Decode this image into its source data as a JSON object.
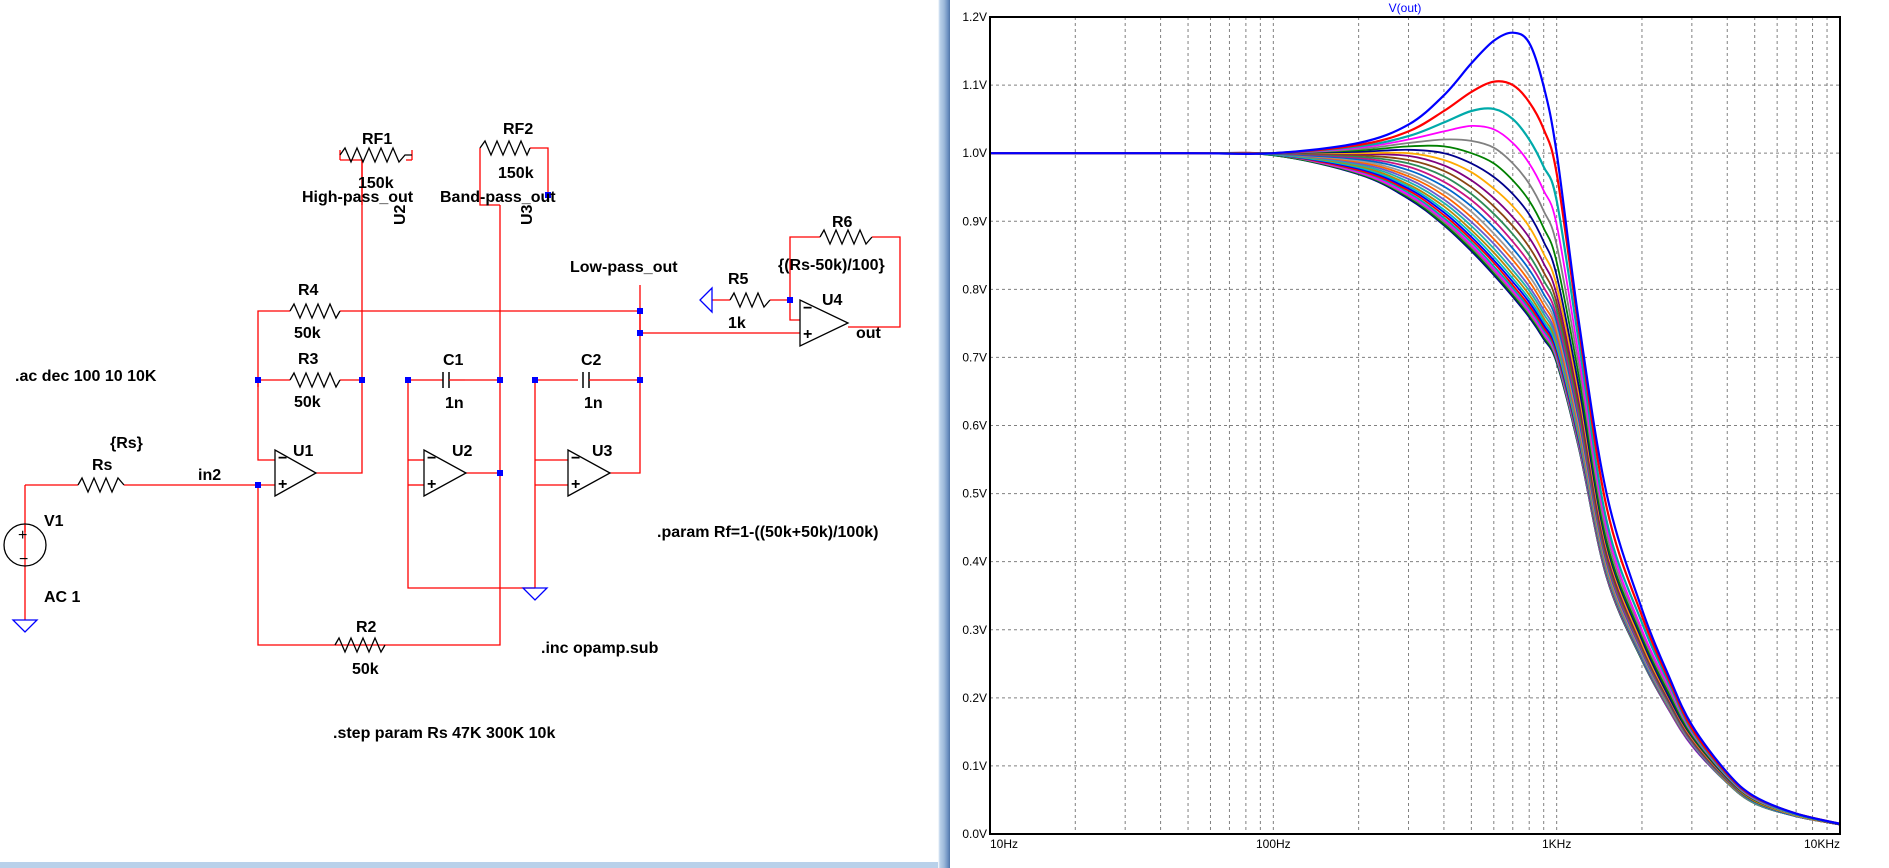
{
  "schematic": {
    "components": {
      "RF1": {
        "name": "RF1",
        "value": "150k"
      },
      "RF2": {
        "name": "RF2",
        "value": "150k"
      },
      "R4": {
        "name": "R4",
        "value": "50k"
      },
      "R3": {
        "name": "R3",
        "value": "50k"
      },
      "R2": {
        "name": "R2",
        "value": "50k"
      },
      "R5": {
        "name": "R5",
        "value": "1k"
      },
      "R6": {
        "name": "R6",
        "value": "{(Rs-50k)/100}"
      },
      "Rs": {
        "name": "Rs",
        "value": "{Rs}"
      },
      "C1": {
        "name": "C1",
        "value": "1n"
      },
      "C2": {
        "name": "C2",
        "value": "1n"
      },
      "V1": {
        "name": "V1",
        "value": "AC 1"
      },
      "U1": {
        "name": "U1"
      },
      "U2": {
        "name": "U2"
      },
      "U3": {
        "name": "U3"
      },
      "U4": {
        "name": "U4"
      },
      "U2_rot": {
        "name": "U2"
      },
      "U3_rot": {
        "name": "U3"
      }
    },
    "nets": {
      "high_pass": "High-pass_out",
      "band_pass": "Band-pass_out",
      "low_pass": "Low-pass_out",
      "in2": "in2",
      "out": "out"
    },
    "directives": {
      "ac": ".ac dec 100 10 10K",
      "param": ".param Rf=1-((50k+50k)/100k)",
      "inc": ".inc opamp.sub",
      "step": ".step param Rs 47K 300K 10k"
    },
    "colors": {
      "wire": "#ff0000",
      "component": "#000000",
      "ground": "#0000ff",
      "junction": "#0000ff"
    }
  },
  "plot": {
    "title": "V(out)",
    "colors": {
      "title": "#0000ff",
      "grid": "#808080",
      "frame": "#000000"
    },
    "series_palette": [
      "#0000ff",
      "#ff0000",
      "#00aaaa",
      "#ff00ff",
      "#808080",
      "#008000",
      "#00008b",
      "#ffaa00",
      "#800080",
      "#8b4513",
      "#2e8b57",
      "#c71585",
      "#0066cc",
      "#999999",
      "#ff6600",
      "#6a5acd",
      "#20b2aa",
      "#b8860b",
      "#00bfbf"
    ]
  },
  "chart_data": {
    "type": "line",
    "title": "V(out)",
    "xscale": "log",
    "xlim": [
      10,
      10000
    ],
    "ylim": [
      0,
      1.2
    ],
    "x_tick_labels": [
      "10Hz",
      "100Hz",
      "1KHz",
      "10KHz"
    ],
    "y_tick_labels": [
      "0.0V",
      "0.1V",
      "0.2V",
      "0.3V",
      "0.4V",
      "0.5V",
      "0.6V",
      "0.7V",
      "0.8V",
      "0.9V",
      "1.0V",
      "1.1V",
      "1.2V"
    ],
    "y_ticks": [
      0,
      0.1,
      0.2,
      0.3,
      0.4,
      0.5,
      0.6,
      0.7,
      0.8,
      0.9,
      1.0,
      1.1,
      1.2
    ],
    "x_ticks": [
      10,
      100,
      1000,
      10000
    ],
    "grid": true,
    "step_param": "Rs",
    "steps": [
      47000,
      57000,
      67000,
      77000,
      87000,
      97000,
      107000,
      117000,
      127000,
      137000,
      147000,
      157000,
      167000,
      177000,
      187000,
      197000,
      207000,
      217000,
      227000,
      237000,
      247000,
      257000,
      267000,
      277000,
      287000,
      297000
    ],
    "x": [
      10,
      50,
      100,
      200,
      300,
      400,
      500,
      600,
      700,
      800,
      900,
      1000,
      1200,
      1500,
      2000,
      2500,
      3000,
      4000,
      5000,
      7000,
      10000
    ],
    "series": [
      {
        "values": [
          1.0,
          1.0,
          1.0,
          1.015,
          1.042,
          1.085,
          1.132,
          1.165,
          1.177,
          1.162,
          1.098,
          1.0,
          0.75,
          0.5,
          0.33,
          0.23,
          0.16,
          0.09,
          0.055,
          0.03,
          0.015
        ]
      },
      {
        "values": [
          1.0,
          1.0,
          1.0,
          1.012,
          1.032,
          1.062,
          1.09,
          1.105,
          1.1,
          1.075,
          1.035,
          0.97,
          0.74,
          0.48,
          0.32,
          0.225,
          0.155,
          0.088,
          0.054,
          0.03,
          0.015
        ]
      },
      {
        "values": [
          1.0,
          1.0,
          1.0,
          1.01,
          1.025,
          1.045,
          1.062,
          1.065,
          1.05,
          1.02,
          0.98,
          0.93,
          0.72,
          0.46,
          0.31,
          0.22,
          0.152,
          0.086,
          0.053,
          0.029,
          0.015
        ]
      },
      {
        "values": [
          1.0,
          1.0,
          1.0,
          1.008,
          1.02,
          1.032,
          1.04,
          1.035,
          1.015,
          0.985,
          0.945,
          0.895,
          0.7,
          0.45,
          0.3,
          0.215,
          0.15,
          0.085,
          0.052,
          0.029,
          0.015
        ]
      },
      {
        "values": [
          1.0,
          1.0,
          1.0,
          1.006,
          1.015,
          1.02,
          1.018,
          1.008,
          0.985,
          0.955,
          0.915,
          0.865,
          0.685,
          0.44,
          0.295,
          0.21,
          0.148,
          0.084,
          0.051,
          0.028,
          0.015
        ]
      },
      {
        "values": [
          1.0,
          1.0,
          1.0,
          1.004,
          1.01,
          1.01,
          1.0,
          0.985,
          0.96,
          0.93,
          0.89,
          0.84,
          0.67,
          0.43,
          0.29,
          0.205,
          0.145,
          0.083,
          0.05,
          0.028,
          0.015
        ]
      },
      {
        "values": [
          1.0,
          1.0,
          1.0,
          1.002,
          1.005,
          1.0,
          0.985,
          0.965,
          0.94,
          0.91,
          0.87,
          0.82,
          0.655,
          0.425,
          0.285,
          0.2,
          0.143,
          0.082,
          0.05,
          0.028,
          0.014
        ]
      },
      {
        "values": [
          1.0,
          1.0,
          1.0,
          1.0,
          1.0,
          0.99,
          0.972,
          0.948,
          0.922,
          0.892,
          0.852,
          0.805,
          0.645,
          0.42,
          0.28,
          0.198,
          0.141,
          0.081,
          0.049,
          0.027,
          0.014
        ]
      },
      {
        "values": [
          1.0,
          1.0,
          1.0,
          0.999,
          0.996,
          0.982,
          0.96,
          0.934,
          0.906,
          0.876,
          0.838,
          0.792,
          0.636,
          0.415,
          0.278,
          0.196,
          0.14,
          0.08,
          0.049,
          0.027,
          0.014
        ]
      },
      {
        "values": [
          1.0,
          1.0,
          1.0,
          0.997,
          0.99,
          0.974,
          0.95,
          0.922,
          0.893,
          0.862,
          0.825,
          0.78,
          0.628,
          0.41,
          0.275,
          0.194,
          0.138,
          0.08,
          0.048,
          0.027,
          0.014
        ]
      },
      {
        "values": [
          1.0,
          1.0,
          1.0,
          0.995,
          0.985,
          0.966,
          0.94,
          0.911,
          0.881,
          0.85,
          0.813,
          0.77,
          0.62,
          0.406,
          0.273,
          0.192,
          0.137,
          0.079,
          0.048,
          0.027,
          0.014
        ]
      },
      {
        "values": [
          1.0,
          1.0,
          1.0,
          0.993,
          0.98,
          0.958,
          0.931,
          0.901,
          0.87,
          0.839,
          0.803,
          0.76,
          0.613,
          0.402,
          0.27,
          0.191,
          0.136,
          0.079,
          0.048,
          0.027,
          0.014
        ]
      },
      {
        "values": [
          1.0,
          1.0,
          0.999,
          0.991,
          0.975,
          0.951,
          0.922,
          0.891,
          0.86,
          0.829,
          0.793,
          0.752,
          0.607,
          0.399,
          0.268,
          0.19,
          0.135,
          0.078,
          0.047,
          0.026,
          0.014
        ]
      },
      {
        "values": [
          1.0,
          1.0,
          0.999,
          0.989,
          0.97,
          0.944,
          0.914,
          0.882,
          0.851,
          0.82,
          0.785,
          0.744,
          0.601,
          0.396,
          0.266,
          0.189,
          0.134,
          0.078,
          0.047,
          0.026,
          0.014
        ]
      },
      {
        "values": [
          1.0,
          1.0,
          0.999,
          0.987,
          0.966,
          0.938,
          0.906,
          0.874,
          0.843,
          0.812,
          0.777,
          0.737,
          0.596,
          0.393,
          0.265,
          0.188,
          0.134,
          0.077,
          0.047,
          0.026,
          0.014
        ]
      },
      {
        "values": [
          1.0,
          1.0,
          0.999,
          0.985,
          0.962,
          0.932,
          0.899,
          0.867,
          0.835,
          0.804,
          0.77,
          0.73,
          0.592,
          0.391,
          0.263,
          0.187,
          0.133,
          0.077,
          0.047,
          0.026,
          0.014
        ]
      },
      {
        "values": [
          1.0,
          1.0,
          0.999,
          0.983,
          0.958,
          0.927,
          0.893,
          0.86,
          0.828,
          0.798,
          0.764,
          0.725,
          0.588,
          0.389,
          0.262,
          0.186,
          0.133,
          0.077,
          0.046,
          0.026,
          0.014
        ]
      },
      {
        "values": [
          1.0,
          1.0,
          0.999,
          0.981,
          0.954,
          0.922,
          0.887,
          0.854,
          0.822,
          0.792,
          0.758,
          0.72,
          0.584,
          0.387,
          0.261,
          0.185,
          0.132,
          0.076,
          0.046,
          0.026,
          0.014
        ]
      },
      {
        "values": [
          1.0,
          1.0,
          0.998,
          0.979,
          0.951,
          0.917,
          0.882,
          0.848,
          0.816,
          0.786,
          0.753,
          0.715,
          0.581,
          0.385,
          0.26,
          0.184,
          0.132,
          0.076,
          0.046,
          0.026,
          0.014
        ]
      },
      {
        "values": [
          1.0,
          1.0,
          0.998,
          0.977,
          0.948,
          0.913,
          0.877,
          0.843,
          0.811,
          0.781,
          0.748,
          0.711,
          0.578,
          0.384,
          0.259,
          0.184,
          0.131,
          0.076,
          0.046,
          0.026,
          0.014
        ]
      },
      {
        "values": [
          1.0,
          1.0,
          0.998,
          0.975,
          0.945,
          0.909,
          0.873,
          0.839,
          0.806,
          0.776,
          0.744,
          0.707,
          0.575,
          0.382,
          0.258,
          0.183,
          0.131,
          0.076,
          0.046,
          0.026,
          0.014
        ]
      },
      {
        "values": [
          1.0,
          1.0,
          0.998,
          0.974,
          0.942,
          0.905,
          0.869,
          0.834,
          0.802,
          0.772,
          0.74,
          0.703,
          0.572,
          0.381,
          0.257,
          0.183,
          0.131,
          0.075,
          0.046,
          0.026,
          0.014
        ]
      },
      {
        "values": [
          1.0,
          1.0,
          0.998,
          0.972,
          0.939,
          0.902,
          0.865,
          0.83,
          0.798,
          0.768,
          0.736,
          0.7,
          0.57,
          0.38,
          0.257,
          0.182,
          0.13,
          0.075,
          0.046,
          0.026,
          0.014
        ]
      },
      {
        "values": [
          1.0,
          1.0,
          0.998,
          0.971,
          0.937,
          0.899,
          0.862,
          0.827,
          0.795,
          0.765,
          0.733,
          0.697,
          0.568,
          0.379,
          0.256,
          0.182,
          0.13,
          0.075,
          0.045,
          0.026,
          0.014
        ]
      },
      {
        "values": [
          1.0,
          1.0,
          0.997,
          0.97,
          0.935,
          0.896,
          0.859,
          0.824,
          0.792,
          0.762,
          0.73,
          0.694,
          0.566,
          0.378,
          0.255,
          0.182,
          0.13,
          0.075,
          0.045,
          0.026,
          0.014
        ]
      },
      {
        "values": [
          1.0,
          1.0,
          0.997,
          0.969,
          0.933,
          0.894,
          0.856,
          0.821,
          0.789,
          0.759,
          0.727,
          0.692,
          0.565,
          0.377,
          0.255,
          0.181,
          0.13,
          0.075,
          0.045,
          0.026,
          0.014
        ]
      }
    ]
  }
}
